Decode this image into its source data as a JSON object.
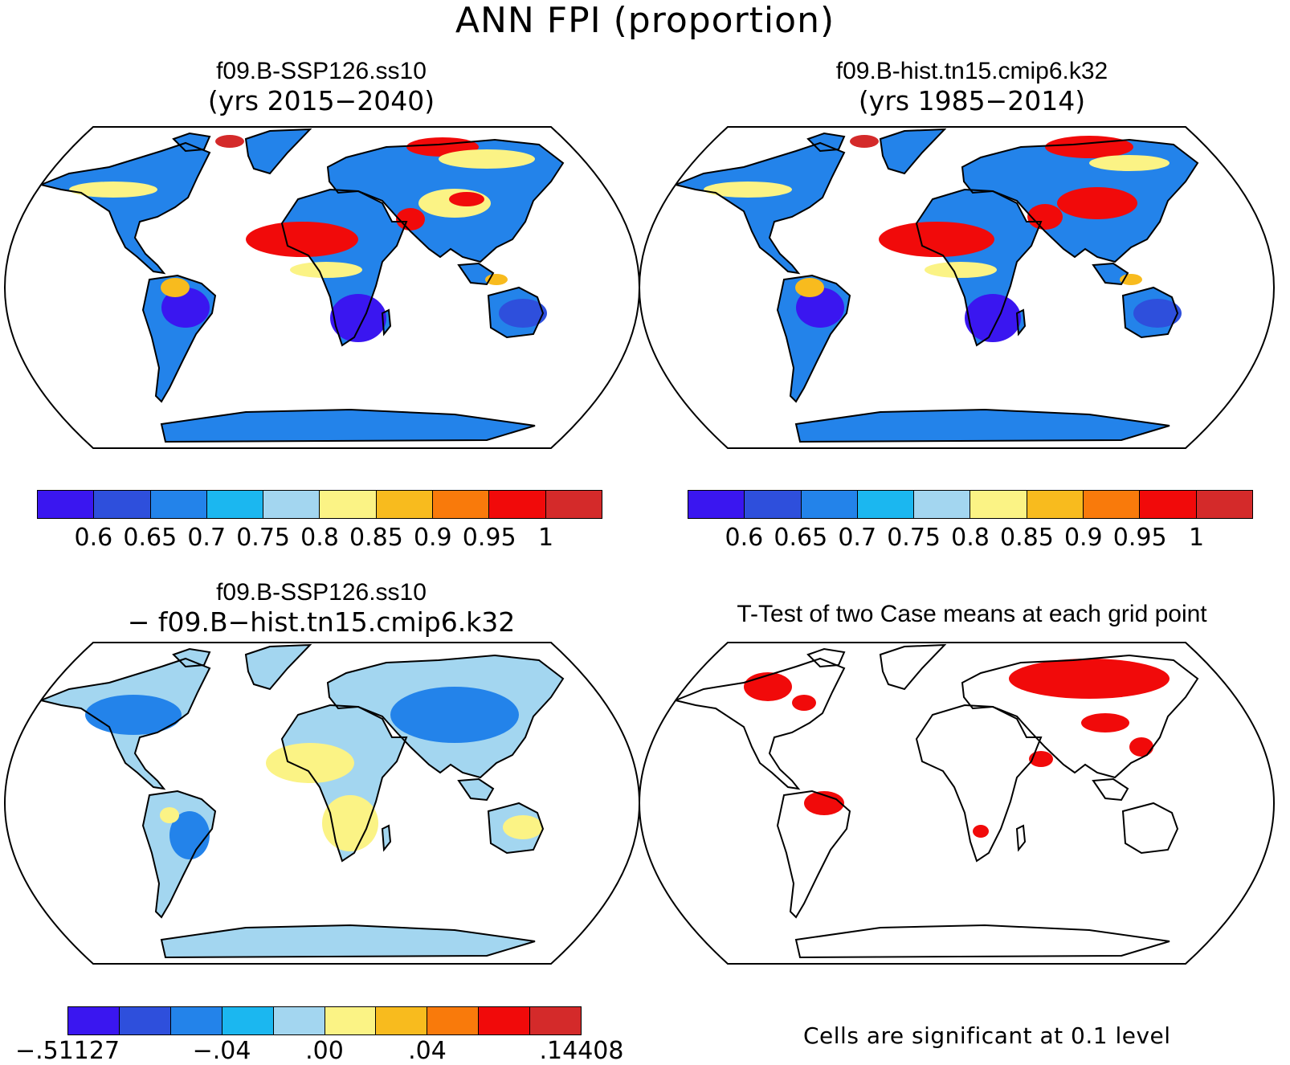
{
  "title": "ANN FPI (proportion)",
  "panels": {
    "top_left": {
      "title": "f09.B-SSP126.ss10",
      "subtitle": "(yrs 2015−2040)"
    },
    "top_right": {
      "title": "f09.B-hist.tn15.cmip6.k32",
      "subtitle": "(yrs 1985−2014)"
    },
    "bottom_left": {
      "title": "f09.B-SSP126.ss10",
      "subtitle": "− f09.B−hist.tn15.cmip6.k32"
    },
    "bottom_right": {
      "title": "T-Test of two Case means at each grid point",
      "note": "Cells are significant at 0.1 level"
    }
  },
  "colorbars": {
    "absolute": {
      "colors": [
        "#3a16f0",
        "#2e4fdc",
        "#2383ea",
        "#1bb7f0",
        "#a3d6f0",
        "#fbf385",
        "#f8bb1e",
        "#f97a0b",
        "#f10a0a",
        "#d42a2a"
      ],
      "labels": [
        "0.6",
        "0.65",
        "0.7",
        "0.75",
        "0.8",
        "0.85",
        "0.9",
        "0.95",
        "1"
      ]
    },
    "difference": {
      "colors": [
        "#3a16f0",
        "#2e4fdc",
        "#2383ea",
        "#1bb7f0",
        "#a3d6f0",
        "#fbf385",
        "#f8bb1e",
        "#f97a0b",
        "#f10a0a",
        "#d42a2a"
      ],
      "labels": [
        "−.51127",
        "−.04",
        ".00",
        ".04",
        ".14408"
      ]
    }
  },
  "map_colors": {
    "deep_blue": "#3a16f0",
    "blue": "#2383ea",
    "light_blue": "#a3d6f0",
    "yellow": "#fbf385",
    "orange": "#f8bb1e",
    "red": "#f10a0a",
    "dark_red": "#d42a2a",
    "significant": "#f10a0a",
    "coastline": "#000000"
  },
  "chart_data": {
    "type": "map",
    "projection": "Robinson (global)",
    "variable": "ANN FPI",
    "units": "proportion",
    "panels": [
      {
        "case": "f09.B-SSP126.ss10",
        "years": [
          2015,
          2040
        ],
        "colorbar": "absolute"
      },
      {
        "case": "f09.B-hist.tn15.cmip6.k32",
        "years": [
          1985,
          2014
        ],
        "colorbar": "absolute"
      },
      {
        "case": "difference",
        "colorbar": "difference",
        "range": [
          -0.51127,
          0.14408
        ]
      },
      {
        "case": "t-test",
        "significance_level": 0.1
      }
    ]
  }
}
